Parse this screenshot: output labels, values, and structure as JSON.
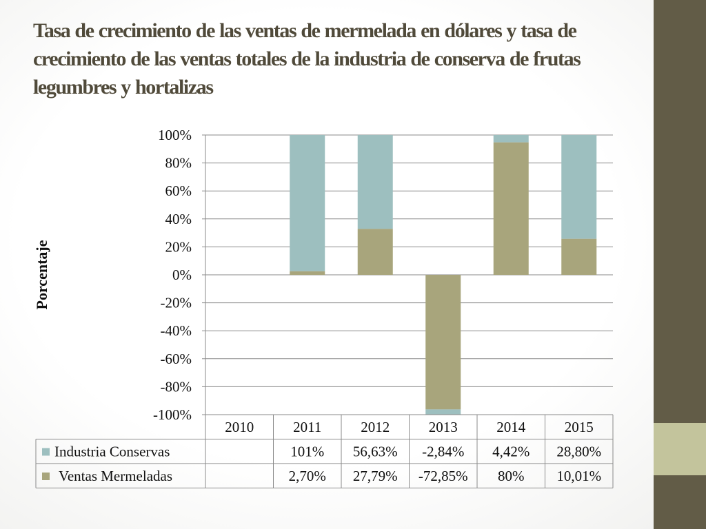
{
  "slide": {
    "title": "Tasa de crecimiento de las ventas de mermelada en dólares y tasa de crecimiento de las ventas totales de la industria de conserva de frutas legumbres y hortalizas"
  },
  "colors": {
    "sidebar": "#625c47",
    "sidebar_accent": "#c3c49c",
    "industria": "#9dbfbf",
    "mermeladas": "#a8a57c"
  },
  "chart_data": {
    "type": "bar",
    "stacked": "percent",
    "categories": [
      "2010",
      "2011",
      "2012",
      "2013",
      "2014",
      "2015"
    ],
    "ylabel": "Porcentaje",
    "ylim": [
      -1,
      1
    ],
    "yticks": [
      1,
      0.8,
      0.6,
      0.4,
      0.2,
      0,
      -0.2,
      -0.4,
      -0.6,
      -0.8,
      -1
    ],
    "ytick_labels": [
      "100%",
      "80%",
      "60%",
      "40%",
      "20%",
      "0%",
      "-20%",
      "-40%",
      "-60%",
      "-80%",
      "-100%"
    ],
    "grid": true,
    "legend": "data-table",
    "series": [
      {
        "name": "Industria Conservas",
        "values": [
          null,
          1.01,
          0.5663,
          -0.0284,
          0.0442,
          0.288
        ],
        "labels": [
          "",
          "101%",
          "56,63%",
          "-2,84%",
          "4,42%",
          "28,80%"
        ]
      },
      {
        "name": "Ventas Mermeladas",
        "values": [
          null,
          0.027,
          0.2779,
          -0.7285,
          0.8,
          0.1001
        ],
        "labels": [
          "",
          "2,70%",
          "27,79%",
          "-72,85%",
          "80%",
          "10,01%"
        ]
      }
    ]
  }
}
